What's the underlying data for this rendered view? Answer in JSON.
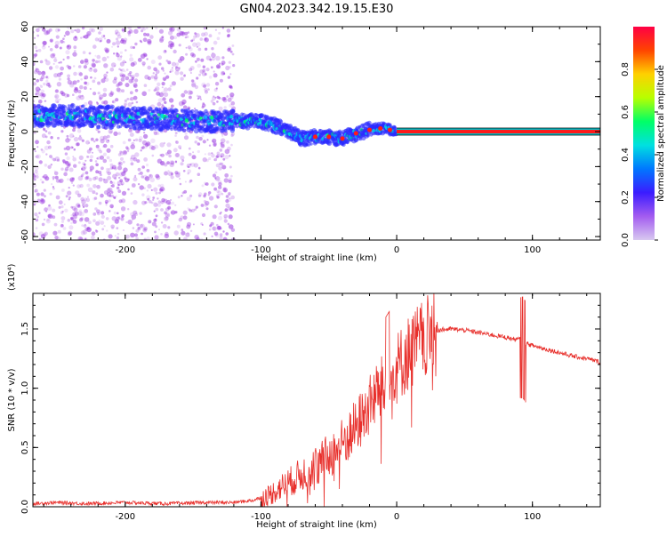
{
  "figure_title": "GN04.2023.342.19.15.E30",
  "colors": {
    "snr_line": "#e8302c",
    "axis": "#000000",
    "spectrogram_scatter": "#9b3ce0",
    "spectrogram_band": "#2a2aff",
    "spectrogram_peak": "#ff1a1a",
    "colorbar_stops": [
      "#d8c8f0",
      "#a35cf0",
      "#3b1cff",
      "#0077ff",
      "#00e0e0",
      "#00ff66",
      "#b8ff00",
      "#ffd000",
      "#ff4400",
      "#ff0044"
    ]
  },
  "chart_data": [
    {
      "type": "heatmap",
      "xlabel": "Height of straight line (km)",
      "ylabel": "Frequency (Hz)",
      "xlim": [
        -268,
        150
      ],
      "ylim": [
        -62,
        60
      ],
      "xticks": [
        -200,
        -100,
        0,
        100
      ],
      "yticks": [
        60,
        40,
        20,
        0,
        -20,
        -40,
        -60
      ],
      "xtick_labels": [
        "-200",
        "-100",
        "0",
        "100"
      ],
      "ytick_labels": [
        "60",
        "40",
        "20",
        "0",
        "-20",
        "-40",
        "-60"
      ],
      "grid": false,
      "noise_region_x": [
        -268,
        -120
      ],
      "ridge": {
        "x": [
          -268,
          -230,
          -200,
          -170,
          -140,
          -120,
          -100,
          -85,
          -70,
          -60,
          -50,
          -40,
          -30,
          -20,
          -10,
          0,
          40,
          90,
          150
        ],
        "y": [
          9,
          9,
          8,
          7,
          6,
          6,
          6,
          2,
          -4,
          -3,
          -3,
          -4,
          -1,
          1,
          2,
          0,
          0,
          0,
          0
        ]
      },
      "colorbar": {
        "label": "Normalized spectral amplitude",
        "range": [
          0,
          1
        ],
        "ticks": [
          0.0,
          0.2,
          0.4,
          0.6,
          0.8
        ],
        "tick_labels": [
          "0.0",
          "0.2",
          "0.4",
          "0.6",
          "0.8"
        ]
      }
    },
    {
      "type": "line",
      "xlabel": "Height of straight line (km)",
      "ylabel": "SNR (10 * v/v)",
      "y_multiplier": "(x10⁴)",
      "xlim": [
        -268,
        150
      ],
      "ylim": [
        0,
        1.8
      ],
      "xticks": [
        -200,
        -100,
        0,
        100
      ],
      "xtick_labels": [
        "-200",
        "-100",
        "0",
        "100"
      ],
      "yticks": [
        0.0,
        0.5,
        1.0,
        1.5
      ],
      "ytick_labels": [
        "0.0",
        "0.5",
        "1.0",
        "1.5"
      ],
      "grid": false,
      "series": [
        {
          "x": [
            -268,
            -250,
            -230,
            -200,
            -170,
            -140,
            -120,
            -105,
            -95,
            -85,
            -75,
            -65,
            -55,
            -45,
            -35,
            -25,
            -15,
            -8,
            0,
            10,
            20,
            30,
            40,
            50,
            60,
            70,
            80,
            88,
            93,
            95,
            100,
            110,
            120,
            130,
            140,
            150
          ],
          "y": [
            0.02,
            0.03,
            0.02,
            0.03,
            0.02,
            0.03,
            0.03,
            0.05,
            0.1,
            0.18,
            0.25,
            0.33,
            0.4,
            0.5,
            0.62,
            0.78,
            0.98,
            1.05,
            1.2,
            1.35,
            1.45,
            1.49,
            1.5,
            1.49,
            1.47,
            1.45,
            1.43,
            1.41,
            1.42,
            1.38,
            1.36,
            1.33,
            1.3,
            1.27,
            1.25,
            1.22
          ]
        }
      ]
    }
  ]
}
